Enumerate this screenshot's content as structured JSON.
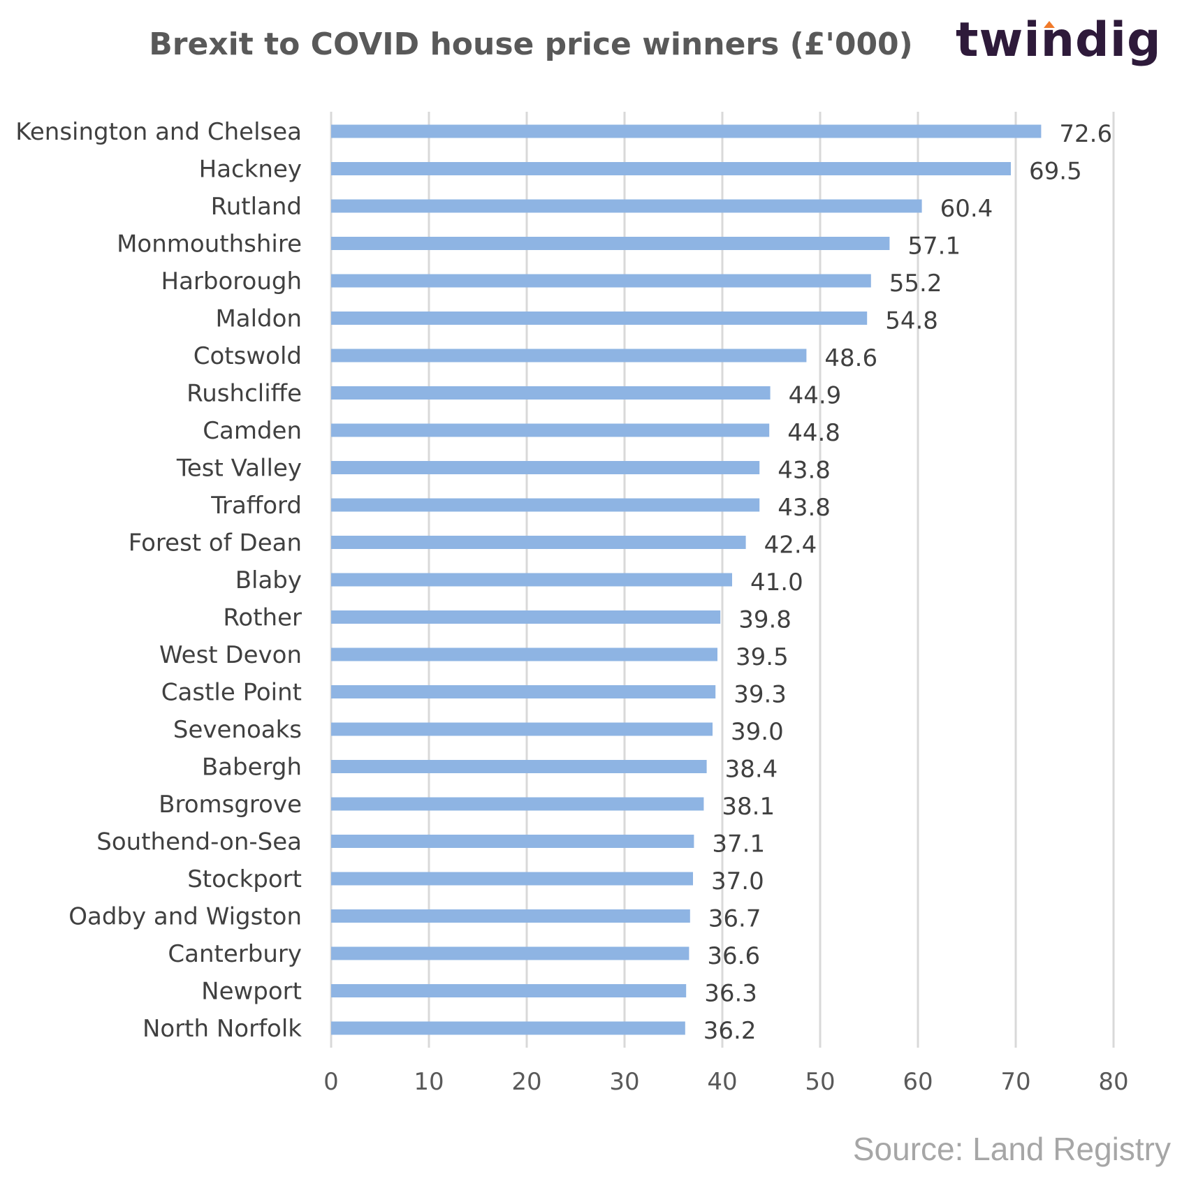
{
  "header": {
    "title": "Brexit to COVID house price winners (£'000)",
    "brand": "twindig"
  },
  "footer": {
    "source": "Source: Land Registry"
  },
  "colors": {
    "bar": "#8eb4e3",
    "grid": "#d9d9d9",
    "title": "#595959",
    "brand": "#2e1a3a",
    "brand_accent": "#f07a2a",
    "source": "#a6a6a6"
  },
  "chart_data": {
    "type": "bar",
    "orientation": "horizontal",
    "title": "Brexit to COVID house price winners (£'000)",
    "categories": [
      "Kensington and Chelsea",
      "Hackney",
      "Rutland",
      "Monmouthshire",
      "Harborough",
      "Maldon",
      "Cotswold",
      "Rushcliffe",
      "Camden",
      "Test Valley",
      "Trafford",
      "Forest of Dean",
      "Blaby",
      "Rother",
      "West Devon",
      "Castle Point",
      "Sevenoaks",
      "Babergh",
      "Bromsgrove",
      "Southend-on-Sea",
      "Stockport",
      "Oadby and Wigston",
      "Canterbury",
      "Newport",
      "North Norfolk"
    ],
    "values": [
      72.6,
      69.5,
      60.4,
      57.1,
      55.2,
      54.8,
      48.6,
      44.9,
      44.8,
      43.8,
      43.8,
      42.4,
      41.0,
      39.8,
      39.5,
      39.3,
      39.0,
      38.4,
      38.1,
      37.1,
      37.0,
      36.7,
      36.6,
      36.3,
      36.2
    ],
    "value_labels": [
      "72.6",
      "69.5",
      "60.4",
      "57.1",
      "55.2",
      "54.8",
      "48.6",
      "44.9",
      "44.8",
      "43.8",
      "43.8",
      "42.4",
      "41.0",
      "39.8",
      "39.5",
      "39.3",
      "39.0",
      "38.4",
      "38.1",
      "37.1",
      "37.0",
      "36.7",
      "36.6",
      "36.3",
      "36.2"
    ],
    "xticks": [
      "0",
      "10",
      "20",
      "30",
      "40",
      "50",
      "60",
      "70",
      "80"
    ],
    "xlim": [
      0,
      80
    ],
    "grid": true,
    "legend": "none"
  }
}
